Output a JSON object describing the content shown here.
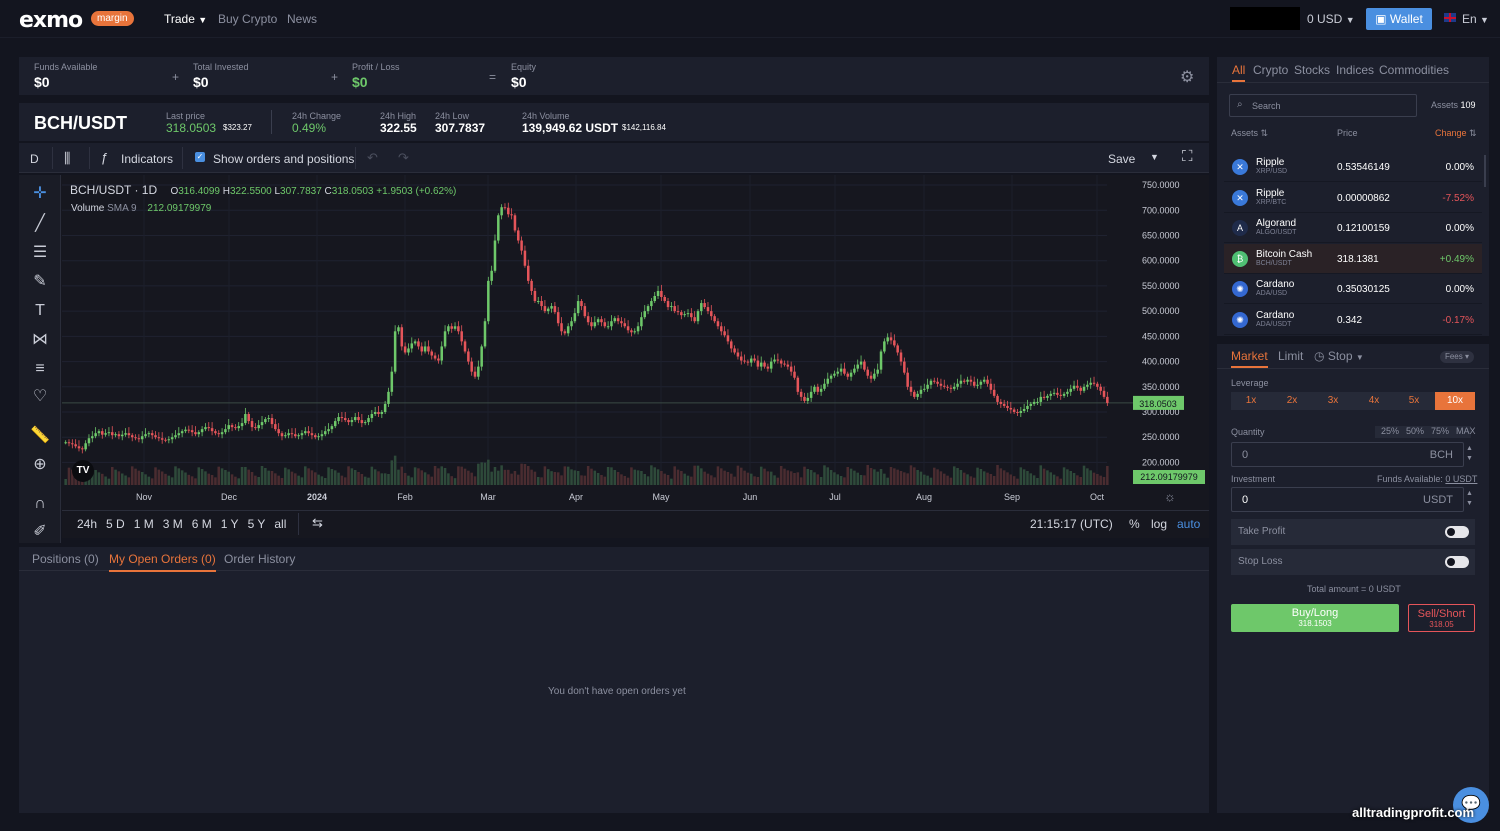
{
  "brand": {
    "name": "EXMO",
    "badge": "margin"
  },
  "nav": {
    "trade": "Trade",
    "buy_crypto": "Buy Crypto",
    "news": "News"
  },
  "header_right": {
    "balance": "0 USD",
    "wallet": "Wallet",
    "language": "En"
  },
  "summary": {
    "funds_label": "Funds Available",
    "funds_value": "$0",
    "invested_label": "Total Invested",
    "invested_value": "$0",
    "pl_label": "Profit / Loss",
    "pl_value": "$0",
    "equity_label": "Equity",
    "equity_value": "$0",
    "op_plus1": "+",
    "op_plus2": "+",
    "op_eq": "="
  },
  "ticker": {
    "pair": "BCH/USDT",
    "last_label": "Last price",
    "last_value": "318.0503",
    "last_usd": "$323.27",
    "change_label": "24h Change",
    "change_value": "0.49%",
    "high_label": "24h High",
    "high_value": "322.55",
    "low_label": "24h Low",
    "low_value": "307.7837",
    "volume_label": "24h Volume",
    "volume_value": "139,949.62 USDT",
    "volume_usd": "$142,116.84"
  },
  "chart_toolbar": {
    "interval": "D",
    "indicators": "Indicators",
    "show_orders": "Show orders and positions",
    "save": "Save"
  },
  "chart_legend": {
    "title": "BCH/USDT · 1D",
    "o_label": "O",
    "o": "316.4099",
    "h_label": "H",
    "h": "322.5500",
    "l_label": "L",
    "l": "307.7837",
    "c_label": "C",
    "c": "318.0503",
    "chg": "+1.9503 (+0.62%)",
    "volume_label": "Volume",
    "sma_label": "SMA 9",
    "volume_value": "212.09179979"
  },
  "chart_data": {
    "type": "candlestick",
    "y_ticks": [
      "750.0000",
      "700.0000",
      "650.0000",
      "600.0000",
      "550.0000",
      "500.0000",
      "450.0000",
      "400.0000",
      "350.0000",
      "300.0000",
      "250.0000",
      "200.0000"
    ],
    "x_ticks": [
      "Nov",
      "Dec",
      "2024",
      "Feb",
      "Mar",
      "Apr",
      "May",
      "Jun",
      "Jul",
      "Aug",
      "Sep",
      "Oct"
    ],
    "ylim": [
      185,
      760
    ],
    "last_price_tag": "318.0503",
    "volume_tag": "212.09179979",
    "closes": [
      240,
      238,
      236,
      232,
      228,
      226,
      238,
      248,
      252,
      258,
      262,
      255,
      258,
      260,
      254,
      256,
      252,
      255,
      258,
      254,
      250,
      248,
      246,
      252,
      256,
      258,
      254,
      250,
      248,
      245,
      244,
      246,
      250,
      254,
      258,
      262,
      265,
      264,
      260,
      256,
      260,
      266,
      270,
      268,
      262,
      258,
      256,
      260,
      266,
      274,
      270,
      268,
      272,
      278,
      296,
      282,
      270,
      268,
      274,
      280,
      286,
      288,
      276,
      266,
      258,
      252,
      254,
      258,
      256,
      252,
      254,
      258,
      262,
      258,
      254,
      250,
      252,
      256,
      262,
      266,
      272,
      282,
      290,
      288,
      284,
      280,
      284,
      290,
      284,
      278,
      280,
      288,
      296,
      300,
      296,
      300,
      316,
      340,
      380,
      460,
      468,
      430,
      418,
      426,
      436,
      440,
      430,
      420,
      430,
      420,
      412,
      406,
      402,
      430,
      460,
      470,
      465,
      470,
      460,
      440,
      420,
      400,
      380,
      370,
      390,
      430,
      480,
      560,
      580,
      640,
      690,
      706,
      705,
      692,
      690,
      660,
      640,
      620,
      590,
      560,
      540,
      520,
      520,
      510,
      500,
      505,
      510,
      498,
      476,
      460,
      456,
      470,
      480,
      496,
      520,
      510,
      490,
      478,
      470,
      478,
      484,
      478,
      470,
      470,
      480,
      486,
      480,
      476,
      470,
      462,
      458,
      460,
      470,
      488,
      500,
      510,
      520,
      530,
      540,
      528,
      520,
      508,
      510,
      500,
      498,
      492,
      494,
      496,
      488,
      480,
      500,
      516,
      508,
      500,
      490,
      480,
      470,
      460,
      452,
      440,
      426,
      418,
      410,
      402,
      400,
      398,
      406,
      402,
      390,
      398,
      390,
      386,
      400,
      404,
      402,
      396,
      394,
      390,
      380,
      368,
      340,
      330,
      322,
      328,
      340,
      350,
      340,
      346,
      356,
      366,
      372,
      376,
      380,
      386,
      376,
      370,
      378,
      386,
      394,
      400,
      384,
      372,
      366,
      376,
      384,
      420,
      440,
      448,
      442,
      432,
      418,
      400,
      378,
      350,
      340,
      330,
      336,
      344,
      346,
      354,
      362,
      360,
      356,
      352,
      350,
      348,
      346,
      350,
      356,
      362,
      360,
      364,
      360,
      352,
      354,
      360,
      364,
      356,
      344,
      332,
      320,
      316,
      312,
      308,
      305,
      300,
      298,
      302,
      306,
      312,
      316,
      320,
      320,
      330,
      328,
      332,
      336,
      338,
      334,
      332,
      336,
      340,
      346,
      352,
      348,
      342,
      350,
      354,
      358,
      356,
      350,
      342,
      330,
      318
    ]
  },
  "timeframes": [
    "24h",
    "5 D",
    "1 M",
    "3 M",
    "6 M",
    "1 Y",
    "5 Y",
    "all"
  ],
  "chart_bottom": {
    "time": "21:15:17 (UTC)",
    "pct": "%",
    "log": "log",
    "auto": "auto"
  },
  "orders_tabs": {
    "positions": "Positions (0)",
    "open_orders": "My Open Orders (0)",
    "history": "Order History",
    "empty": "You don't have open orders yet"
  },
  "market_tabs": {
    "all": "All",
    "crypto": "Crypto",
    "stocks": "Stocks",
    "indices": "Indices",
    "commodities": "Commodities"
  },
  "market_search": {
    "placeholder": "Search",
    "assets_label": "Assets",
    "assets_count": "109"
  },
  "market_cols": {
    "assets": "Assets",
    "price": "Price",
    "change": "Change"
  },
  "assets": [
    {
      "name": "Ripple",
      "pair": "XRP/USD",
      "price": "0.53546149",
      "change": "0.00%",
      "dir": "flat",
      "color": "#3a79d9",
      "icon": "✕"
    },
    {
      "name": "Ripple",
      "pair": "XRP/BTC",
      "price": "0.00000862",
      "change": "-7.52%",
      "dir": "down",
      "color": "#3a79d9",
      "icon": "✕"
    },
    {
      "name": "Algorand",
      "pair": "ALGO/USDT",
      "price": "0.12100159",
      "change": "0.00%",
      "dir": "flat",
      "color": "#1f2b4a",
      "icon": "A"
    },
    {
      "name": "Bitcoin Cash",
      "pair": "BCH/USDT",
      "price": "318.1381",
      "change": "+0.49%",
      "dir": "up",
      "color": "#4fbf73",
      "icon": "₿"
    },
    {
      "name": "Cardano",
      "pair": "ADA/USD",
      "price": "0.35030125",
      "change": "0.00%",
      "dir": "flat",
      "color": "#3468d1",
      "icon": "✺"
    },
    {
      "name": "Cardano",
      "pair": "ADA/USDT",
      "price": "0.342",
      "change": "-0.17%",
      "dir": "down",
      "color": "#3468d1",
      "icon": "✺"
    }
  ],
  "order_form": {
    "tab_market": "Market",
    "tab_limit": "Limit",
    "tab_stop": "Stop",
    "fees": "Fees",
    "leverage_label": "Leverage",
    "leverage": [
      "1x",
      "2x",
      "3x",
      "4x",
      "5x",
      "10x"
    ],
    "quantity_label": "Quantity",
    "qty_pcts": [
      "25%",
      "50%",
      "75%",
      "MAX"
    ],
    "qty_placeholder": "0",
    "qty_unit": "BCH",
    "investment_label": "Investment",
    "funds_available": "Funds Available:",
    "funds_available_value": "0 USDT",
    "investment_value": "0",
    "investment_unit": "USDT",
    "take_profit": "Take Profit",
    "stop_loss": "Stop Loss",
    "total_amount": "Total amount = 0 USDT",
    "buy_label": "Buy/Long",
    "buy_price": "318.1503",
    "sell_label": "Sell/Short",
    "sell_price": "318.05"
  },
  "watermark": "alltradingprofit.com",
  "colors": {
    "accent": "#e8743b",
    "up": "#6ec86a",
    "down": "#e5555a",
    "panel": "#1c1f2c",
    "bg": "#13151f",
    "wallet": "#4a8fe0"
  }
}
